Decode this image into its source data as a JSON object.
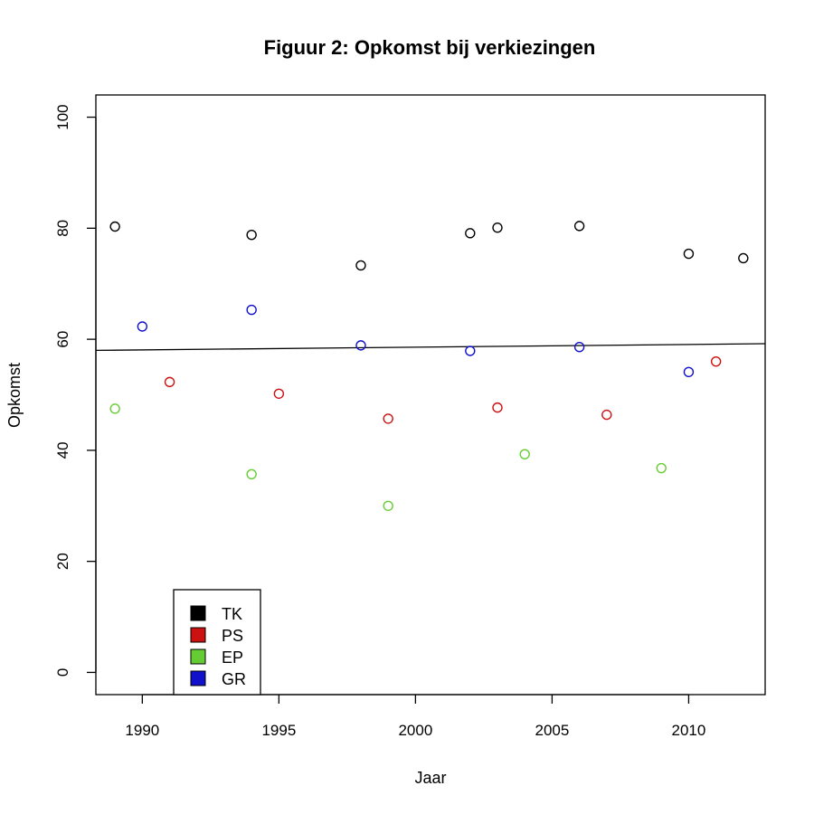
{
  "chart_data": {
    "type": "scatter",
    "title": "Figuur 2: Opkomst bij verkiezingen",
    "xlabel": "Jaar",
    "ylabel": "Opkomst",
    "xlim": [
      1988.3,
      2012.8
    ],
    "ylim": [
      -4,
      104
    ],
    "x_ticks": [
      1990,
      1995,
      2000,
      2005,
      2010
    ],
    "y_ticks": [
      0,
      20,
      40,
      60,
      80,
      100
    ],
    "x_tick_labels": [
      "1990",
      "1995",
      "2000",
      "2005",
      "2010"
    ],
    "y_tick_labels": [
      "0",
      "20",
      "40",
      "60",
      "80",
      "100"
    ],
    "grid": false,
    "legend_position": "bottom-left",
    "series": [
      {
        "name": "TK",
        "color": "#000000",
        "points": [
          [
            1989,
            80.3
          ],
          [
            1994,
            78.8
          ],
          [
            1998,
            73.3
          ],
          [
            2002,
            79.1
          ],
          [
            2003,
            80.1
          ],
          [
            2006,
            80.4
          ],
          [
            2010,
            75.4
          ],
          [
            2012,
            74.6
          ]
        ]
      },
      {
        "name": "PS",
        "color": "#cc1111",
        "points": [
          [
            1991,
            52.3
          ],
          [
            1995,
            50.2
          ],
          [
            1999,
            45.7
          ],
          [
            2003,
            47.7
          ],
          [
            2007,
            46.4
          ],
          [
            2011,
            56.0
          ]
        ]
      },
      {
        "name": "EP",
        "color": "#66cc33",
        "points": [
          [
            1989,
            47.5
          ],
          [
            1994,
            35.7
          ],
          [
            1999,
            30.0
          ],
          [
            2004,
            39.3
          ],
          [
            2009,
            36.8
          ]
        ]
      },
      {
        "name": "GR",
        "color": "#1111cc",
        "points": [
          [
            1990,
            62.3
          ],
          [
            1994,
            65.3
          ],
          [
            1998,
            58.9
          ],
          [
            2002,
            57.9
          ],
          [
            2006,
            58.6
          ],
          [
            2010,
            54.1
          ]
        ]
      }
    ],
    "trend_line": {
      "color": "#000000",
      "points": [
        [
          1988.3,
          58.0
        ],
        [
          2012.8,
          59.2
        ]
      ]
    }
  }
}
